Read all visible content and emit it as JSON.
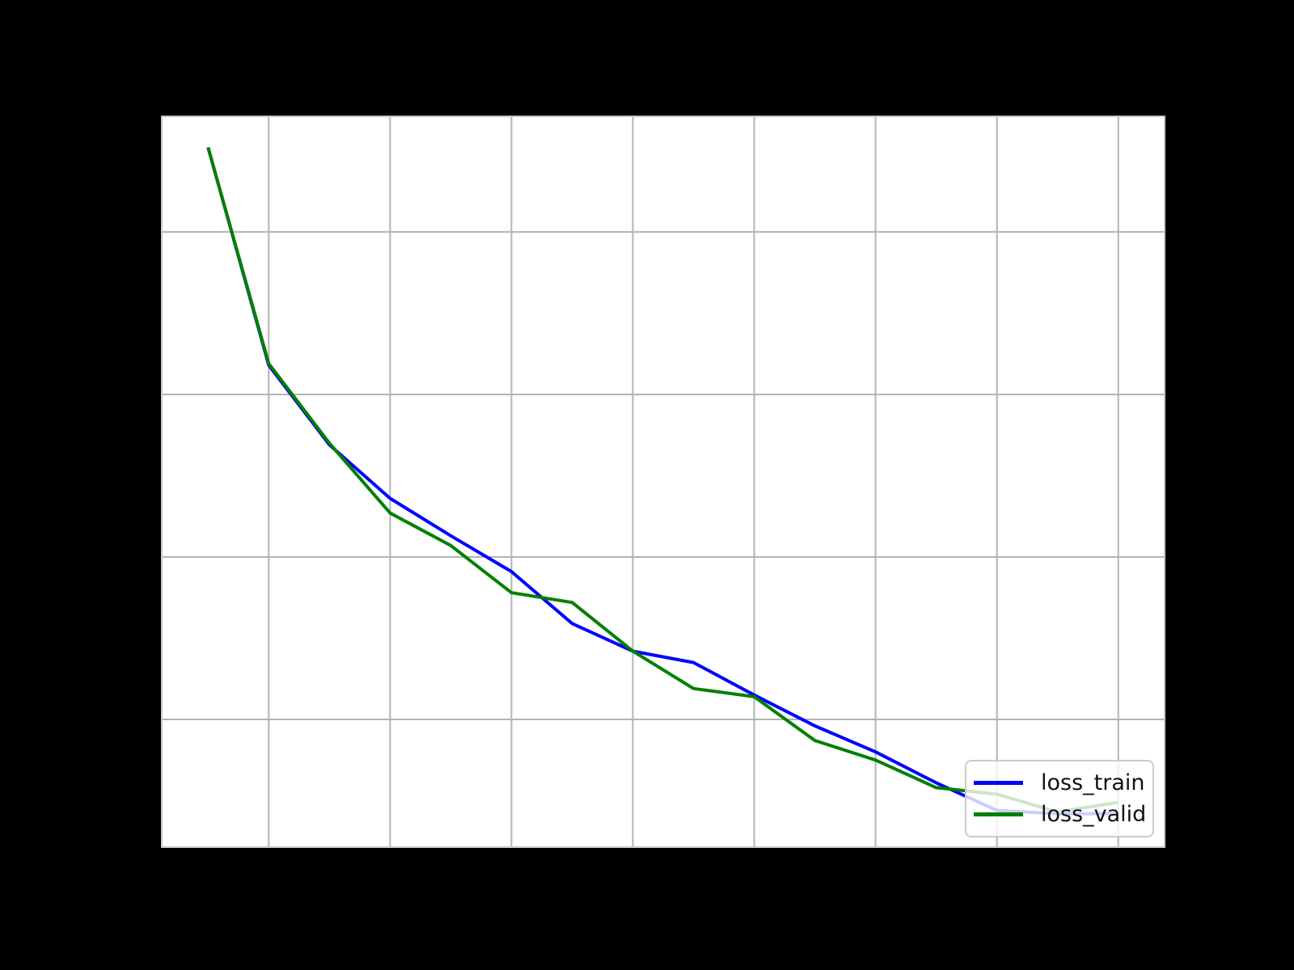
{
  "colors": {
    "figure_background": "#000000",
    "plot_background": "#ffffff",
    "grid": "#b3b3b3",
    "panel_border": "#c9c9c9",
    "legend_border": "#cccccc",
    "legend_text": "#111111"
  },
  "legend": {
    "items": [
      {
        "label": "loss_train",
        "color": "#0000ff"
      },
      {
        "label": "loss_valid",
        "color": "#008000"
      }
    ]
  },
  "chart_data": {
    "type": "line",
    "title": "",
    "xlabel": "",
    "ylabel": "",
    "x": [
      1,
      2,
      3,
      4,
      5,
      6,
      7,
      8,
      9,
      10,
      11,
      12,
      13,
      14,
      15,
      16
    ],
    "series": [
      {
        "name": "loss_train",
        "color": "#0000ff",
        "values": [
          0.452,
          0.318,
          0.269,
          0.236,
          0.213,
          0.191,
          0.159,
          0.142,
          0.135,
          0.115,
          0.096,
          0.08,
          0.061,
          0.044,
          0.042,
          0.042
        ]
      },
      {
        "name": "loss_valid",
        "color": "#008000",
        "values": [
          0.452,
          0.319,
          0.27,
          0.227,
          0.207,
          0.178,
          0.172,
          0.142,
          0.119,
          0.114,
          0.087,
          0.075,
          0.058,
          0.054,
          0.043,
          0.049
        ]
      }
    ],
    "xlim": [
      0.25,
      16.75
    ],
    "ylim": [
      0.0219,
      0.4706
    ],
    "x_gridlines": [
      2,
      4,
      6,
      8,
      10,
      12,
      14,
      16
    ],
    "y_gridlines": [
      0.1,
      0.2,
      0.3,
      0.4
    ],
    "grid": true,
    "tick_labels_visible": false,
    "legend_position": "lower right",
    "line_width": 4
  }
}
